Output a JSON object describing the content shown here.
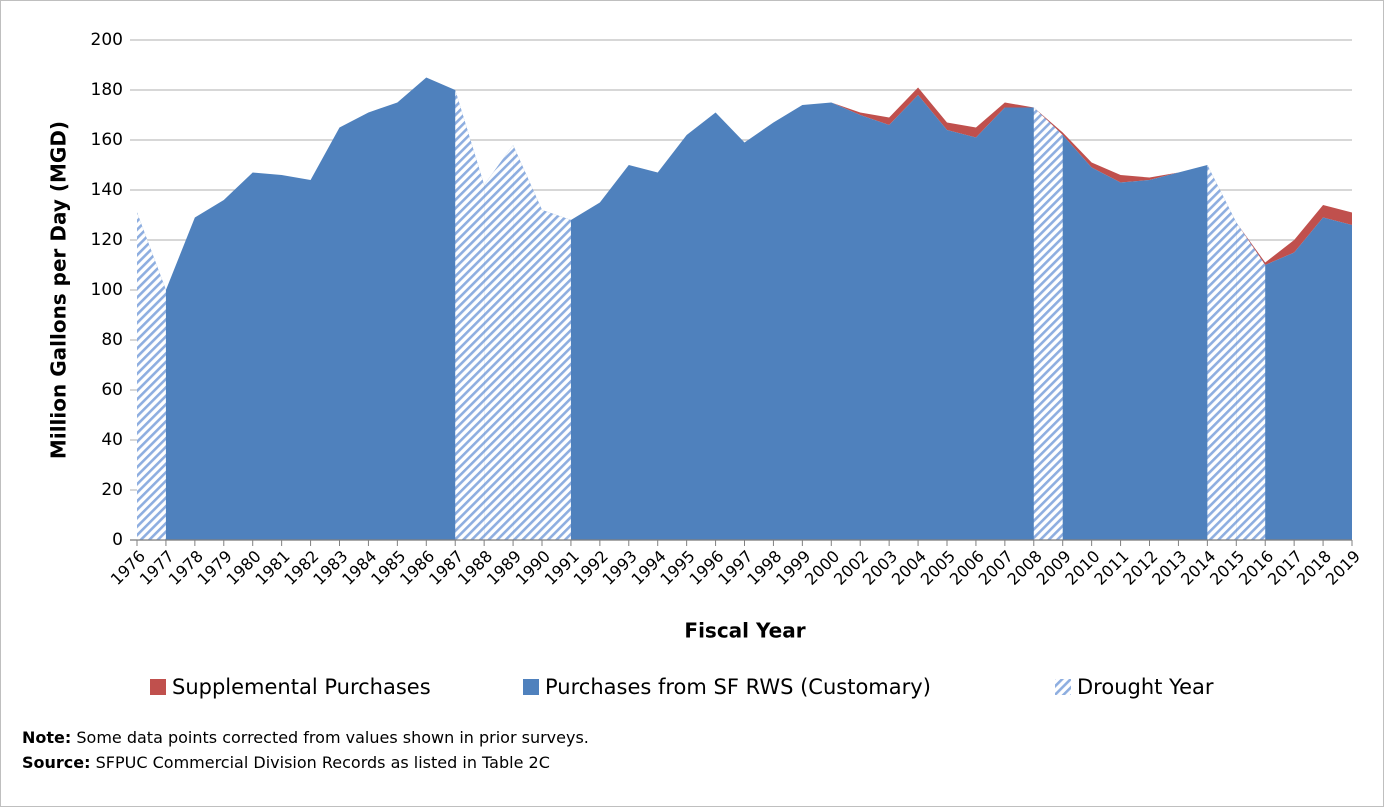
{
  "chart_data": {
    "type": "stacked-area",
    "x_label": "Fiscal Year",
    "y_label": "Million  Gallons per Day (MGD)",
    "categories": [
      "1976",
      "1977",
      "1978",
      "1979",
      "1980",
      "1981",
      "1982",
      "1983",
      "1984",
      "1985",
      "1986",
      "1987",
      "1988",
      "1989",
      "1990",
      "1991",
      "1992",
      "1993",
      "1994",
      "1995",
      "1996",
      "1997",
      "1998",
      "1999",
      "2000",
      "2002",
      "2003",
      "2004",
      "2005",
      "2006",
      "2007",
      "2008",
      "2009",
      "2010",
      "2011",
      "2012",
      "2013",
      "2014",
      "2015",
      "2016",
      "2017",
      "2018",
      "2019"
    ],
    "series": [
      {
        "name": "Supplemental Purchases",
        "color": "#c0504d",
        "values": [
          0,
          0,
          0,
          0,
          0,
          0,
          0,
          0,
          0,
          0,
          0,
          0,
          0,
          0,
          0,
          0,
          0,
          0,
          0,
          0,
          0,
          0,
          0,
          0,
          0,
          1,
          3,
          3,
          3,
          4,
          2,
          0,
          1,
          2,
          3,
          1,
          0,
          0,
          0,
          1,
          5,
          5,
          5
        ]
      },
      {
        "name": "Purchases from SF RWS (Customary)",
        "color": "#4f81bd",
        "values": [
          131,
          100,
          129,
          136,
          147,
          146,
          144,
          165,
          171,
          175,
          185,
          180,
          142,
          158,
          132,
          128,
          135,
          150,
          147,
          162,
          171,
          159,
          167,
          174,
          175,
          170,
          166,
          178,
          164,
          161,
          173,
          173,
          162,
          149,
          143,
          144,
          147,
          150,
          127,
          110,
          115,
          129,
          126
        ]
      }
    ],
    "drought": {
      "name": "Drought Year",
      "color": "#8eaee0",
      "flags": [
        true,
        true,
        false,
        false,
        false,
        false,
        false,
        false,
        false,
        false,
        false,
        true,
        true,
        true,
        true,
        true,
        false,
        false,
        false,
        false,
        false,
        false,
        false,
        false,
        false,
        false,
        false,
        false,
        false,
        false,
        false,
        true,
        true,
        false,
        false,
        false,
        false,
        true,
        true,
        true,
        false,
        false,
        false
      ]
    },
    "ylim": [
      0,
      200
    ],
    "yticks": [
      0,
      20,
      40,
      60,
      80,
      100,
      120,
      140,
      160,
      180,
      200
    ],
    "grid": true,
    "notes": [
      {
        "label": "Note:",
        "text": "Some data points corrected from values shown in prior surveys."
      },
      {
        "label": "Source:",
        "text": "SFPUC Commercial Division Records as listed in Table 2C"
      }
    ]
  }
}
